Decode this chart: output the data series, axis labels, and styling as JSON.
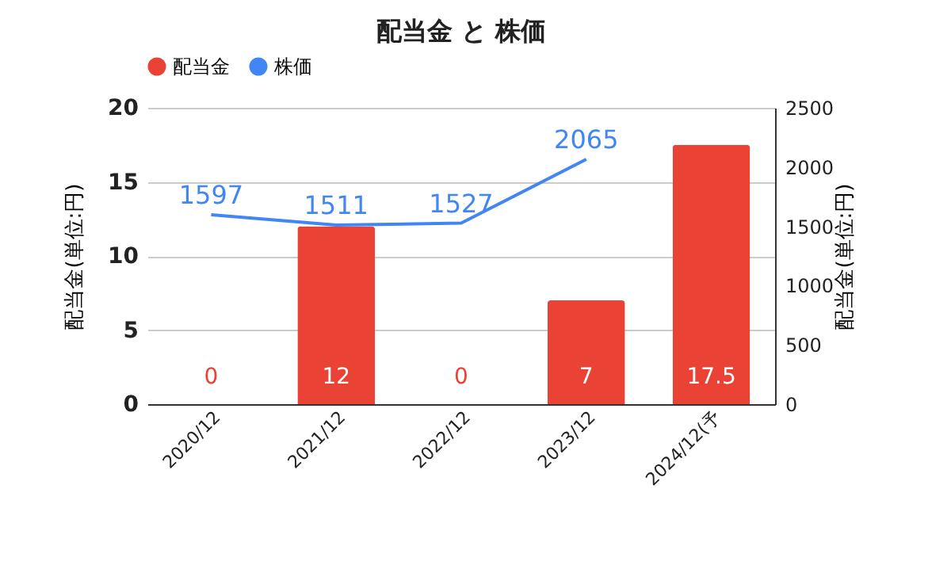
{
  "chart_data": {
    "type": "bar",
    "title": "配当金 と 株価",
    "ylabel": "配当金(単位:円)",
    "y2label": "配当金(単位:円)",
    "categories": [
      "2020/12",
      "2021/12",
      "2022/12",
      "2023/12",
      "2024/12(予"
    ],
    "series": [
      {
        "name": "配当金",
        "color": "#ea4335",
        "values": [
          0,
          12,
          0,
          7,
          17.5
        ]
      },
      {
        "name": "株価",
        "type": "line",
        "axis": "y2",
        "color": "#4285f4",
        "values": [
          1597,
          1511,
          1527,
          2065,
          null
        ]
      }
    ],
    "ylim": [
      0,
      20
    ],
    "yticks": [
      0,
      5,
      10,
      15,
      20
    ],
    "y2lim": [
      0,
      2500
    ],
    "y2ticks": [
      0,
      500,
      1000,
      1500,
      2000,
      2500
    ],
    "grid": "y",
    "legend": "top",
    "data_labels": true
  }
}
